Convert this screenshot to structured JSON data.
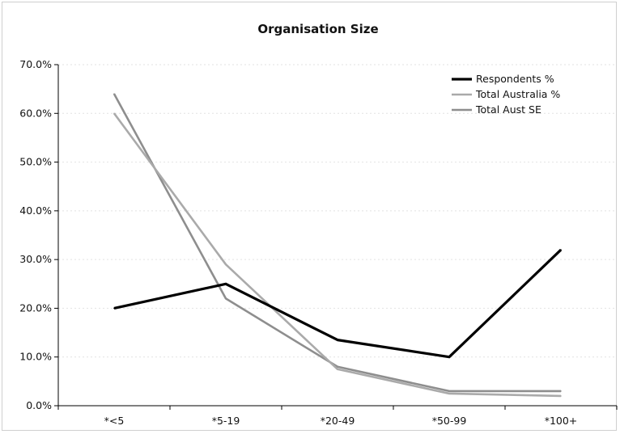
{
  "chart_data": {
    "type": "line",
    "title": "Organisation Size",
    "xlabel": "",
    "ylabel": "",
    "categories": [
      "*<5",
      "*5-19",
      "*20-49",
      "*50-99",
      "*100+"
    ],
    "ylim": [
      0,
      70
    ],
    "yticks": [
      "0.0%",
      "10.0%",
      "20.0%",
      "30.0%",
      "40.0%",
      "50.0%",
      "60.0%",
      "70.0%"
    ],
    "grid": true,
    "legend_position": "top-right",
    "series": [
      {
        "name": "Respondents %",
        "values": [
          20.0,
          25.0,
          13.5,
          10.0,
          32.0
        ],
        "color": "#000000"
      },
      {
        "name": "Total Australia %",
        "values": [
          60.0,
          29.0,
          7.5,
          2.5,
          2.0
        ],
        "color": "#aaaaaa"
      },
      {
        "name": "Total Aust SE",
        "values": [
          64.0,
          22.0,
          8.0,
          3.0,
          3.0
        ],
        "color": "#8e8e8e"
      }
    ]
  }
}
